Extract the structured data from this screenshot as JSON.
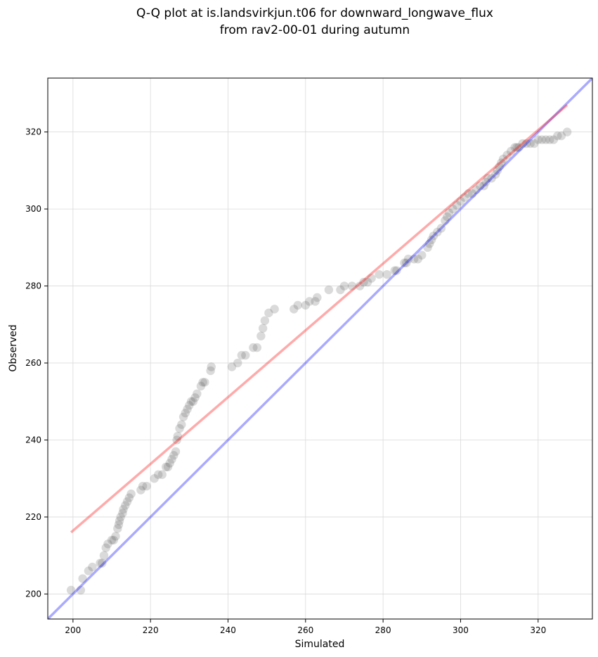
{
  "chart_data": {
    "type": "scatter",
    "title": [
      "Q-Q plot at is.landsvirkjun.t06 for downward_longwave_flux",
      "from rav2-00-01 during autumn"
    ],
    "xlabel": "Simulated",
    "ylabel": "Observed",
    "xlim": [
      193.5,
      334
    ],
    "ylim": [
      193.5,
      334
    ],
    "xticks": [
      200,
      220,
      240,
      260,
      280,
      300,
      320
    ],
    "yticks": [
      200,
      220,
      240,
      260,
      280,
      300,
      320
    ],
    "grid": true,
    "colors": {
      "points": "#555555",
      "identity_line": "#0000ff",
      "fit_line": "#ff0000"
    },
    "identity_line": {
      "x": [
        193.5,
        334
      ],
      "y": [
        193.5,
        334
      ]
    },
    "fit_line": {
      "x": [
        199.5,
        327.5
      ],
      "y": [
        216,
        327
      ]
    },
    "points": {
      "x": [
        199.5,
        202,
        202.5,
        204,
        205,
        207,
        207.5,
        208,
        208.5,
        209,
        210,
        210.5,
        211,
        211.5,
        211.8,
        212,
        212.3,
        212.8,
        213,
        213.5,
        214,
        214.5,
        215,
        217.5,
        218,
        219,
        221,
        222,
        223,
        224,
        224.5,
        225,
        225.5,
        226,
        226.5,
        226.8,
        227,
        227.5,
        228,
        228.5,
        229,
        229.5,
        230,
        230.5,
        231,
        231.5,
        232,
        233,
        233.5,
        234,
        235.5,
        235.7,
        241,
        242.5,
        243.5,
        244.5,
        246.5,
        247.5,
        248.5,
        249,
        249.5,
        250.5,
        252,
        257,
        258,
        260,
        261,
        262.5,
        263,
        266,
        269,
        270,
        272,
        274,
        275,
        276,
        277,
        279,
        281,
        283,
        283.5,
        285.5,
        286,
        286.5,
        288,
        289,
        290,
        291.5,
        292,
        292.5,
        293,
        294,
        295,
        296,
        296.5,
        297,
        298,
        299,
        300,
        301,
        302,
        303,
        304,
        305,
        306,
        306.5,
        307,
        308,
        309,
        309.5,
        310,
        310.5,
        311,
        312,
        313,
        314,
        314.5,
        315,
        316,
        317,
        318,
        319,
        320,
        321,
        322,
        323,
        324,
        325,
        326,
        327.5
      ],
      "y": [
        201,
        201,
        204,
        206,
        207,
        208,
        208,
        210,
        212,
        213,
        214,
        214,
        215,
        217,
        218,
        219,
        220,
        221,
        222,
        223,
        224,
        225,
        226,
        227,
        228,
        228,
        230,
        231,
        231,
        233,
        233,
        234,
        235,
        236,
        237,
        240,
        241,
        243,
        244,
        246,
        247,
        248,
        249,
        250,
        250,
        251,
        252,
        254,
        255,
        255,
        258,
        259,
        259,
        260,
        262,
        262,
        264,
        264,
        267,
        269,
        271,
        273,
        274,
        274,
        275,
        275,
        276,
        276,
        277,
        279,
        279,
        280,
        280,
        280,
        281,
        281,
        282,
        283,
        283,
        284,
        284,
        286,
        286,
        287,
        287,
        287,
        288,
        290,
        291,
        292,
        293,
        294,
        295,
        297,
        298,
        299,
        300,
        301,
        302,
        303,
        304,
        304,
        305,
        306,
        306,
        307,
        308,
        308,
        309,
        310,
        311,
        312,
        313,
        314,
        315,
        316,
        316,
        316,
        317,
        317,
        317,
        317,
        318,
        318,
        318,
        318,
        318,
        319,
        319,
        320
      ]
    }
  }
}
